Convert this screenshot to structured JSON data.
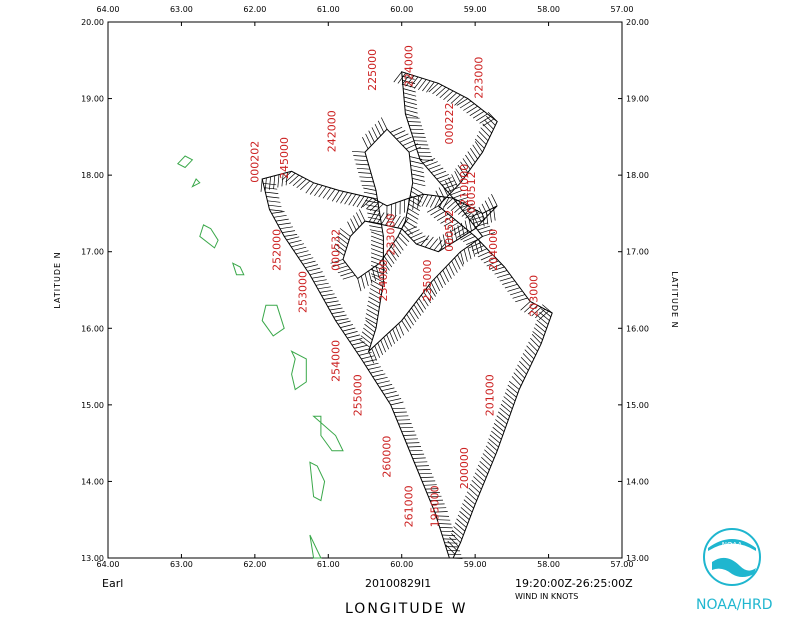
{
  "chart_data": {
    "type": "scatter",
    "storm_name": "Earl",
    "flight_id": "20100829I1",
    "time_range": "19:20:00Z-26:25:00Z",
    "units_note": "WIND IN KNOTS",
    "xlabel": "LONGITUDE   W",
    "ylabel": "LATITUDE   N",
    "xlim": [
      64,
      57
    ],
    "ylim": [
      13,
      20
    ],
    "x_ticks": [
      "64.00",
      "63.00",
      "62.00",
      "61.00",
      "60.00",
      "59.00",
      "58.00",
      "57.00"
    ],
    "y_ticks": [
      "13.00",
      "14.00",
      "15.00",
      "16.00",
      "17.00",
      "18.00",
      "19.00",
      "20.00"
    ],
    "track": [
      [
        59.35,
        13.0
      ],
      [
        59.55,
        13.6
      ],
      [
        59.85,
        14.3
      ],
      [
        60.15,
        15.0
      ],
      [
        60.55,
        15.6
      ],
      [
        60.9,
        16.1
      ],
      [
        61.25,
        16.7
      ],
      [
        61.6,
        17.2
      ],
      [
        61.8,
        17.55
      ],
      [
        61.9,
        17.95
      ],
      [
        61.5,
        18.05
      ],
      [
        61.2,
        17.9
      ],
      [
        60.85,
        17.8
      ],
      [
        60.4,
        17.7
      ],
      [
        60.2,
        17.6
      ],
      [
        59.9,
        17.7
      ],
      [
        59.7,
        17.75
      ],
      [
        59.3,
        17.7
      ],
      [
        58.9,
        17.5
      ],
      [
        58.7,
        17.6
      ],
      [
        59.0,
        17.3
      ],
      [
        59.5,
        17.0
      ],
      [
        59.8,
        17.1
      ],
      [
        60.0,
        17.3
      ],
      [
        60.5,
        17.4
      ],
      [
        60.7,
        17.2
      ],
      [
        60.8,
        16.9
      ],
      [
        60.6,
        16.65
      ],
      [
        60.3,
        16.85
      ],
      [
        60.05,
        17.2
      ],
      [
        59.95,
        17.4
      ],
      [
        59.85,
        17.9
      ],
      [
        59.9,
        18.3
      ],
      [
        60.2,
        18.6
      ],
      [
        60.5,
        18.3
      ],
      [
        60.35,
        17.8
      ],
      [
        60.25,
        17.2
      ],
      [
        60.25,
        16.6
      ],
      [
        60.35,
        16.0
      ],
      [
        60.45,
        15.7
      ],
      [
        60.0,
        16.1
      ],
      [
        59.6,
        16.6
      ],
      [
        59.2,
        17.0
      ],
      [
        58.9,
        17.2
      ],
      [
        59.3,
        17.7
      ],
      [
        59.75,
        18.2
      ],
      [
        59.95,
        18.8
      ],
      [
        60.0,
        19.35
      ],
      [
        59.5,
        19.2
      ],
      [
        59.1,
        19.0
      ],
      [
        58.7,
        18.7
      ],
      [
        58.9,
        18.3
      ],
      [
        59.2,
        17.9
      ],
      [
        59.5,
        17.6
      ],
      [
        59.0,
        17.2
      ],
      [
        58.6,
        16.8
      ],
      [
        58.25,
        16.35
      ],
      [
        57.95,
        16.2
      ],
      [
        58.1,
        15.8
      ],
      [
        58.4,
        15.2
      ],
      [
        58.7,
        14.4
      ],
      [
        59.0,
        13.7
      ],
      [
        59.2,
        13.2
      ],
      [
        59.3,
        13.0
      ]
    ],
    "time_labels": [
      {
        "text": "225000",
        "lon": 60.35,
        "lat": 19.1
      },
      {
        "text": "224000",
        "lon": 59.85,
        "lat": 19.15
      },
      {
        "text": "223000",
        "lon": 58.9,
        "lat": 19.0
      },
      {
        "text": "000222",
        "lon": 59.3,
        "lat": 18.4
      },
      {
        "text": "242000",
        "lon": 60.9,
        "lat": 18.3
      },
      {
        "text": "000202",
        "lon": 61.95,
        "lat": 17.9
      },
      {
        "text": "245000",
        "lon": 61.55,
        "lat": 17.95
      },
      {
        "text": "252000",
        "lon": 61.65,
        "lat": 16.75
      },
      {
        "text": "253000",
        "lon": 61.3,
        "lat": 16.2
      },
      {
        "text": "254000",
        "lon": 60.85,
        "lat": 15.3
      },
      {
        "text": "255000",
        "lon": 60.55,
        "lat": 14.85
      },
      {
        "text": "260000",
        "lon": 60.15,
        "lat": 14.05
      },
      {
        "text": "261000",
        "lon": 59.85,
        "lat": 13.4
      },
      {
        "text": "195000",
        "lon": 59.5,
        "lat": 13.4
      },
      {
        "text": "200000",
        "lon": 59.1,
        "lat": 13.9
      },
      {
        "text": "201000",
        "lon": 58.75,
        "lat": 14.85
      },
      {
        "text": "203000",
        "lon": 58.15,
        "lat": 16.15
      },
      {
        "text": "204000",
        "lon": 58.7,
        "lat": 16.75
      },
      {
        "text": "235000",
        "lon": 59.6,
        "lat": 16.35
      },
      {
        "text": "234000",
        "lon": 60.2,
        "lat": 16.35
      },
      {
        "text": "233000",
        "lon": 60.1,
        "lat": 16.95
      },
      {
        "text": "000532",
        "lon": 60.85,
        "lat": 16.75
      },
      {
        "text": "000522",
        "lon": 59.3,
        "lat": 17.0
      },
      {
        "text": "210000",
        "lon": 59.1,
        "lat": 17.6
      },
      {
        "text": "000512",
        "lon": 59.0,
        "lat": 17.5
      }
    ],
    "islands": [
      [
        [
          62.85,
          18.2
        ],
        [
          62.95,
          18.25
        ],
        [
          63.05,
          18.15
        ],
        [
          62.95,
          18.1
        ]
      ],
      [
        [
          62.75,
          17.9
        ],
        [
          62.8,
          17.95
        ],
        [
          62.85,
          17.85
        ]
      ],
      [
        [
          62.6,
          17.3
        ],
        [
          62.7,
          17.35
        ],
        [
          62.75,
          17.2
        ],
        [
          62.55,
          17.05
        ],
        [
          62.5,
          17.15
        ]
      ],
      [
        [
          62.2,
          16.8
        ],
        [
          62.3,
          16.85
        ],
        [
          62.25,
          16.7
        ],
        [
          62.15,
          16.7
        ]
      ],
      [
        [
          61.7,
          16.3
        ],
        [
          61.85,
          16.3
        ],
        [
          61.9,
          16.1
        ],
        [
          61.75,
          15.9
        ],
        [
          61.6,
          16.0
        ]
      ],
      [
        [
          61.45,
          15.6
        ],
        [
          61.5,
          15.7
        ],
        [
          61.3,
          15.6
        ],
        [
          61.3,
          15.3
        ],
        [
          61.45,
          15.2
        ],
        [
          61.5,
          15.4
        ]
      ],
      [
        [
          61.1,
          14.85
        ],
        [
          61.2,
          14.85
        ],
        [
          60.9,
          14.6
        ],
        [
          60.8,
          14.4
        ],
        [
          60.95,
          14.4
        ],
        [
          61.1,
          14.6
        ]
      ],
      [
        [
          61.15,
          14.2
        ],
        [
          61.25,
          14.25
        ],
        [
          61.2,
          13.8
        ],
        [
          61.1,
          13.75
        ],
        [
          61.05,
          14.0
        ]
      ],
      [
        [
          61.25,
          13.3
        ],
        [
          61.2,
          13.0
        ],
        [
          61.1,
          13.0
        ]
      ]
    ]
  },
  "brand_text": "NOAA/HRD",
  "logo_text": "NOAA"
}
